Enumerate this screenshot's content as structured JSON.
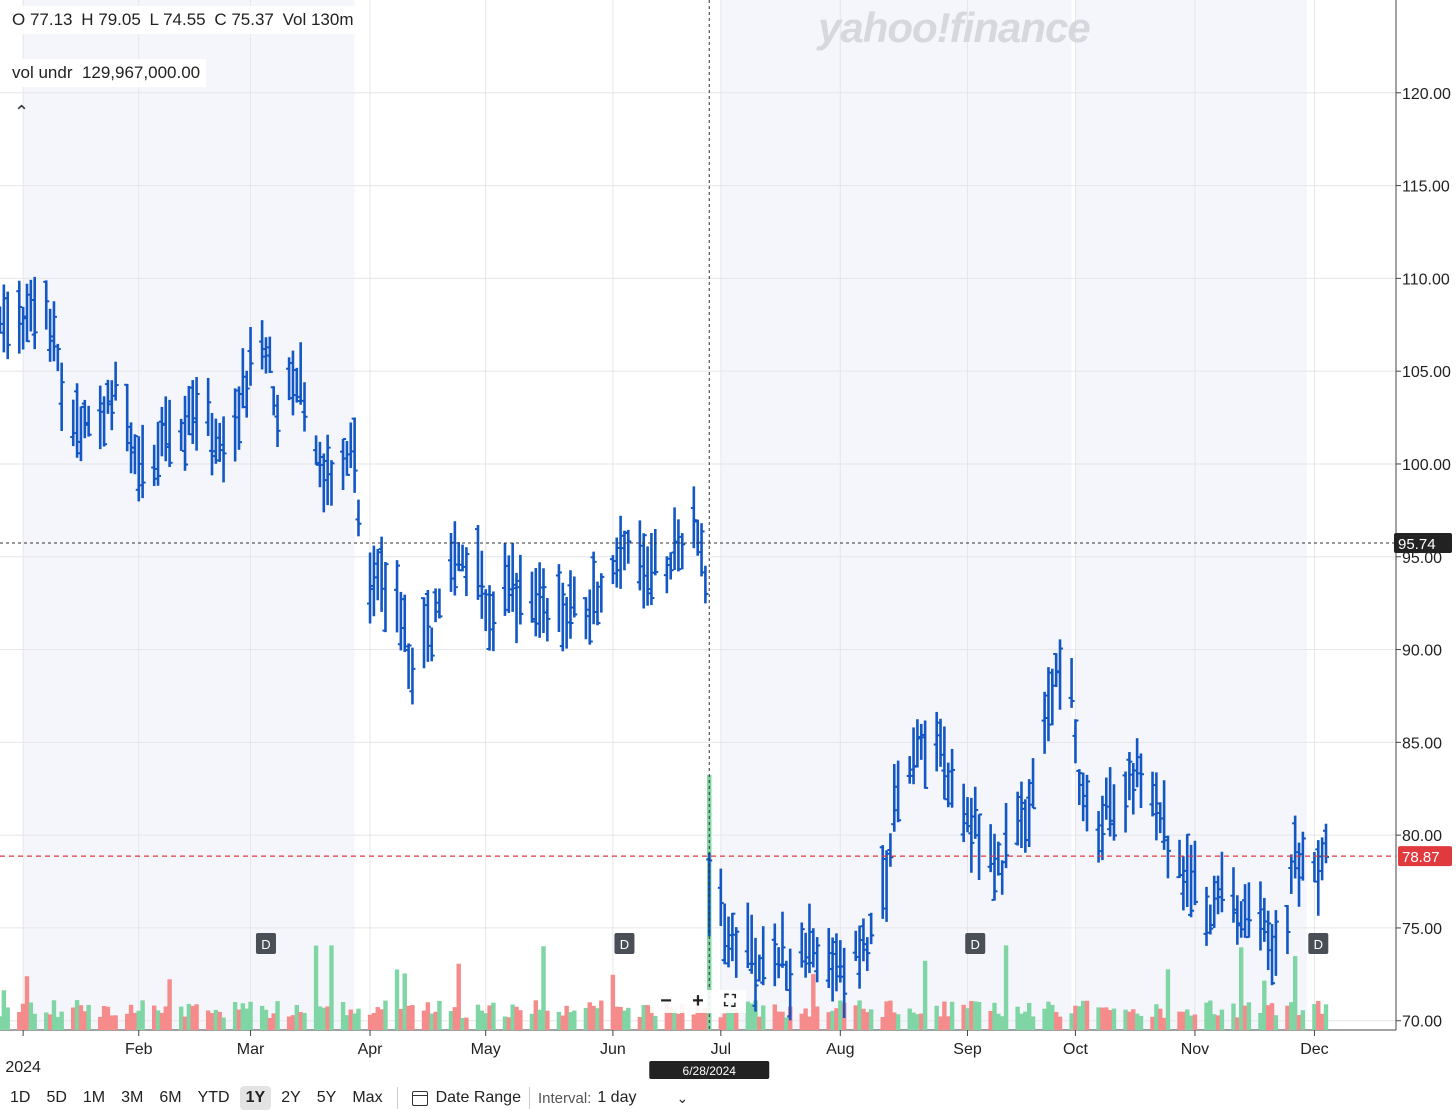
{
  "header": {
    "open": "O 77.13",
    "high": "H 79.05",
    "low": "L 74.55",
    "close": "C 75.37",
    "vol": "Vol 130m",
    "vol_label": "vol undr",
    "vol_value": "129,967,000.00"
  },
  "watermark": "yahoo!finance",
  "toolbar": {
    "ranges": [
      "1D",
      "5D",
      "1M",
      "3M",
      "6M",
      "YTD",
      "1Y",
      "2Y",
      "5Y",
      "Max"
    ],
    "active_range": "1Y",
    "date_range_label": "Date Range",
    "interval_label": "Interval:",
    "interval_value": "1 day"
  },
  "zoom": {
    "minus": "−",
    "plus": "+",
    "fullscreen": "⛶"
  },
  "chart_data": {
    "type": "ohlc",
    "ylim": [
      69.5,
      125
    ],
    "yticks": [
      "120.00",
      "115.00",
      "110.00",
      "105.00",
      "100.00",
      "95.00",
      "90.00",
      "85.00",
      "80.00",
      "75.00",
      "70.00"
    ],
    "ytick_values": [
      120,
      115,
      110,
      105,
      100,
      95,
      90,
      85,
      80,
      75,
      70
    ],
    "months": [
      {
        "label": "2024",
        "date": "2024-01-02",
        "sub": true
      },
      {
        "label": "Feb",
        "date": "2024-02-01"
      },
      {
        "label": "Mar",
        "date": "2024-03-01"
      },
      {
        "label": "Apr",
        "date": "2024-04-01"
      },
      {
        "label": "May",
        "date": "2024-05-01"
      },
      {
        "label": "Jun",
        "date": "2024-06-03"
      },
      {
        "label": "Jul",
        "date": "2024-07-01"
      },
      {
        "label": "Aug",
        "date": "2024-08-01"
      },
      {
        "label": "Sep",
        "date": "2024-09-03"
      },
      {
        "label": "Oct",
        "date": "2024-10-01"
      },
      {
        "label": "Nov",
        "date": "2024-11-01"
      },
      {
        "label": "Dec",
        "date": "2024-12-02"
      }
    ],
    "start_date": "2023-12-27",
    "end_date": "2024-12-05",
    "crosshair": {
      "date": "6/28/2024",
      "price": "95.74",
      "price_value": 95.74
    },
    "last_price": {
      "label": "78.87",
      "value": 78.87
    },
    "dividend_marker": "D",
    "dividend_dates": [
      "2024-03-05",
      "2024-06-06",
      "2024-09-05",
      "2024-12-03"
    ],
    "shaded_quarters": [
      [
        "2024-01-02",
        "2024-03-28"
      ],
      [
        "2024-07-01",
        "2024-09-30"
      ],
      [
        "2024-10-01",
        "2024-11-30"
      ]
    ],
    "anchors": [
      [
        "2024-01-02",
        108
      ],
      [
        "2024-01-08",
        109
      ],
      [
        "2024-01-12",
        104
      ],
      [
        "2024-01-16",
        102
      ],
      [
        "2024-01-22",
        103
      ],
      [
        "2024-01-26",
        104.5
      ],
      [
        "2024-01-30",
        101
      ],
      [
        "2024-02-05",
        100.5
      ],
      [
        "2024-02-12",
        102
      ],
      [
        "2024-02-16",
        103.5
      ],
      [
        "2024-02-22",
        100.5
      ],
      [
        "2024-02-26",
        103
      ],
      [
        "2024-03-01",
        105
      ],
      [
        "2024-03-05",
        106
      ],
      [
        "2024-03-08",
        103
      ],
      [
        "2024-03-12",
        105
      ],
      [
        "2024-03-15",
        103.5
      ],
      [
        "2024-03-19",
        99.5
      ],
      [
        "2024-03-22",
        98.5
      ],
      [
        "2024-03-26",
        100.5
      ],
      [
        "2024-03-28",
        99.5
      ],
      [
        "2024-04-01",
        94
      ],
      [
        "2024-04-05",
        93.5
      ],
      [
        "2024-04-09",
        91.5
      ],
      [
        "2024-04-12",
        89.5
      ],
      [
        "2024-04-16",
        90.5
      ],
      [
        "2024-04-19",
        93
      ],
      [
        "2024-04-24",
        94.5
      ],
      [
        "2024-04-29",
        94
      ],
      [
        "2024-05-03",
        92
      ],
      [
        "2024-05-08",
        93.5
      ],
      [
        "2024-05-13",
        92.5
      ],
      [
        "2024-05-17",
        92
      ],
      [
        "2024-05-22",
        92
      ],
      [
        "2024-05-28",
        92
      ],
      [
        "2024-06-03",
        94
      ],
      [
        "2024-06-07",
        96
      ],
      [
        "2024-06-12",
        95
      ],
      [
        "2024-06-17",
        94.5
      ],
      [
        "2024-06-21",
        95.5
      ],
      [
        "2024-06-25",
        96.5
      ],
      [
        "2024-06-27",
        94.5
      ],
      [
        "2024-06-28",
        77.5
      ],
      [
        "2024-07-03",
        75
      ],
      [
        "2024-07-08",
        73.5
      ],
      [
        "2024-07-12",
        73
      ],
      [
        "2024-07-16",
        73.5
      ],
      [
        "2024-07-19",
        73
      ],
      [
        "2024-07-24",
        74
      ],
      [
        "2024-07-29",
        73
      ],
      [
        "2024-08-02",
        72.5
      ],
      [
        "2024-08-06",
        74
      ],
      [
        "2024-08-09",
        75
      ],
      [
        "2024-08-13",
        78
      ],
      [
        "2024-08-16",
        82.5
      ],
      [
        "2024-08-21",
        84
      ],
      [
        "2024-08-26",
        84.5
      ],
      [
        "2024-08-30",
        82
      ],
      [
        "2024-09-04",
        81
      ],
      [
        "2024-09-06",
        80
      ],
      [
        "2024-09-10",
        78
      ],
      [
        "2024-09-13",
        79
      ],
      [
        "2024-09-17",
        80.5
      ],
      [
        "2024-09-20",
        82
      ],
      [
        "2024-09-24",
        88
      ],
      [
        "2024-09-27",
        89.5
      ],
      [
        "2024-09-30",
        88.5
      ],
      [
        "2024-10-02",
        83
      ],
      [
        "2024-10-07",
        81
      ],
      [
        "2024-10-11",
        82
      ],
      [
        "2024-10-16",
        83
      ],
      [
        "2024-10-18",
        83.5
      ],
      [
        "2024-10-23",
        80.5
      ],
      [
        "2024-10-28",
        78.5
      ],
      [
        "2024-11-01",
        77
      ],
      [
        "2024-11-05",
        76
      ],
      [
        "2024-11-08",
        76.5
      ],
      [
        "2024-11-13",
        75.5
      ],
      [
        "2024-11-18",
        76.5
      ],
      [
        "2024-11-21",
        73.5
      ],
      [
        "2024-11-25",
        76
      ],
      [
        "2024-11-27",
        78.5
      ],
      [
        "2024-12-02",
        78.5
      ],
      [
        "2024-12-05",
        78.8
      ]
    ]
  }
}
